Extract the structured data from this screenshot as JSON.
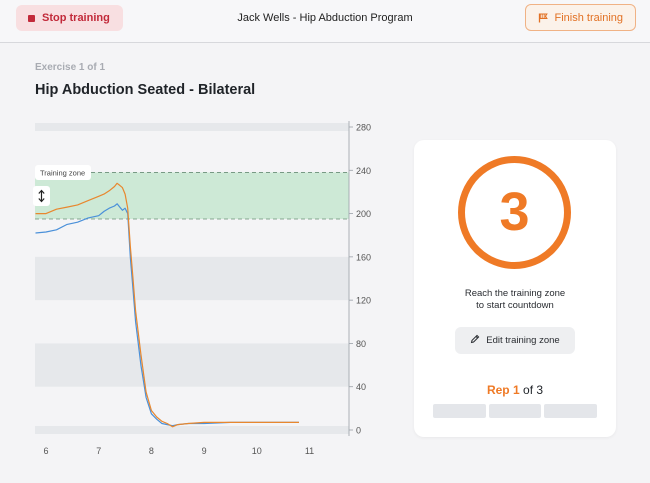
{
  "header": {
    "stop_label": "Stop training",
    "title": "Jack Wells - Hip Abduction Program",
    "finish_label": "Finish training"
  },
  "exercise": {
    "counter": "Exercise 1 of 1",
    "title": "Hip Abduction  Seated - Bilateral"
  },
  "chart_data": {
    "type": "line",
    "title": "",
    "xlabel": "",
    "ylabel": "",
    "xlim": [
      5.8,
      11.7
    ],
    "ylim": [
      0,
      280
    ],
    "x_ticks": [
      6,
      7,
      8,
      9,
      10,
      11
    ],
    "y_ticks": [
      0,
      40,
      80,
      120,
      160,
      200,
      240,
      280
    ],
    "training_zone": {
      "label": "Training zone",
      "from": 195,
      "to": 238,
      "color": "#cde9d6"
    },
    "band_color": "#e6e8eb",
    "series": [
      {
        "color": "#4a90d9",
        "x": [
          5.8,
          6.0,
          6.2,
          6.4,
          6.6,
          6.8,
          7.0,
          7.1,
          7.2,
          7.3,
          7.35,
          7.4,
          7.45,
          7.5,
          7.55,
          7.6,
          7.65,
          7.7,
          7.8,
          7.9,
          8.0,
          8.1,
          8.2,
          8.3,
          8.4,
          8.5,
          8.7,
          9.0,
          9.5,
          10.0,
          10.5,
          10.8
        ],
        "y": [
          182,
          183,
          185,
          190,
          192,
          196,
          198,
          202,
          205,
          207,
          209,
          206,
          203,
          205,
          200,
          160,
          130,
          100,
          60,
          30,
          15,
          10,
          6,
          5,
          4,
          5,
          6,
          6,
          7,
          7,
          7,
          7
        ]
      },
      {
        "color": "#e8872e",
        "x": [
          5.8,
          6.0,
          6.2,
          6.4,
          6.6,
          6.8,
          7.0,
          7.1,
          7.2,
          7.3,
          7.35,
          7.4,
          7.45,
          7.5,
          7.55,
          7.6,
          7.65,
          7.7,
          7.8,
          7.9,
          8.0,
          8.1,
          8.2,
          8.3,
          8.4,
          8.5,
          8.7,
          9.0,
          9.5,
          10.0,
          10.5,
          10.8
        ],
        "y": [
          200,
          200,
          204,
          206,
          208,
          212,
          216,
          218,
          221,
          225,
          228,
          226,
          224,
          218,
          205,
          170,
          140,
          110,
          70,
          35,
          18,
          12,
          8,
          6,
          3,
          5,
          6,
          7,
          7,
          7,
          7,
          7
        ]
      }
    ]
  },
  "card": {
    "countdown": "3",
    "instruction_line1": "Reach the training zone",
    "instruction_line2": "to start countdown",
    "edit_zone_label": "Edit training zone",
    "rep_label": "Rep",
    "rep_current": "1",
    "rep_of": "of 3",
    "rep_progress": [
      0,
      0,
      0
    ]
  },
  "colors": {
    "accent": "#ef7a26",
    "danger": "#c22a3a",
    "zone": "#cde9d6"
  }
}
